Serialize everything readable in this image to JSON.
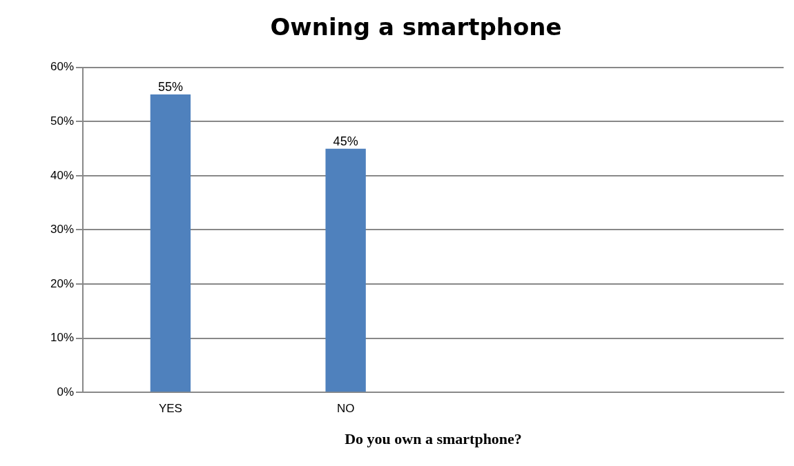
{
  "chart_data": {
    "type": "bar",
    "title": "Owning a smartphone",
    "xlabel": "Do you own a smartphone?",
    "categories": [
      "YES",
      "NO",
      null,
      null
    ],
    "values": [
      55,
      45,
      null,
      null
    ],
    "value_labels": [
      "55%",
      "45%",
      null,
      null
    ],
    "color": "#4f81bd",
    "ylim": [
      0,
      60
    ],
    "yticks": [
      {
        "value": 0,
        "label": "0%"
      },
      {
        "value": 10,
        "label": "10%"
      },
      {
        "value": 20,
        "label": "20%"
      },
      {
        "value": 30,
        "label": "30%"
      },
      {
        "value": 40,
        "label": "40%"
      },
      {
        "value": 50,
        "label": "50%"
      },
      {
        "value": 60,
        "label": "60%"
      }
    ],
    "grid": "y",
    "legend": false
  }
}
